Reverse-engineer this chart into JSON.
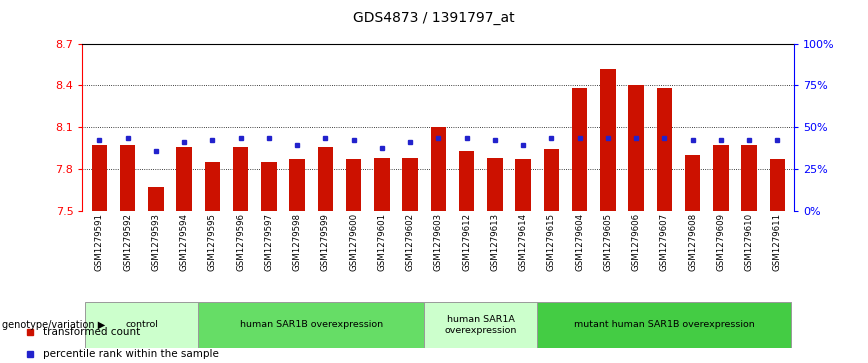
{
  "title": "GDS4873 / 1391797_at",
  "samples": [
    "GSM1279591",
    "GSM1279592",
    "GSM1279593",
    "GSM1279594",
    "GSM1279595",
    "GSM1279596",
    "GSM1279597",
    "GSM1279598",
    "GSM1279599",
    "GSM1279600",
    "GSM1279601",
    "GSM1279602",
    "GSM1279603",
    "GSM1279612",
    "GSM1279613",
    "GSM1279614",
    "GSM1279615",
    "GSM1279604",
    "GSM1279605",
    "GSM1279606",
    "GSM1279607",
    "GSM1279608",
    "GSM1279609",
    "GSM1279610",
    "GSM1279611"
  ],
  "bar_values": [
    7.97,
    7.97,
    7.67,
    7.96,
    7.85,
    7.96,
    7.85,
    7.87,
    7.96,
    7.87,
    7.88,
    7.88,
    8.1,
    7.93,
    7.88,
    7.87,
    7.94,
    8.38,
    8.52,
    8.4,
    8.38,
    7.9,
    7.97,
    7.97,
    7.87
  ],
  "dot_values": [
    8.01,
    8.02,
    7.93,
    7.99,
    8.01,
    8.02,
    8.02,
    7.97,
    8.02,
    8.01,
    7.95,
    7.99,
    8.02,
    8.02,
    8.01,
    7.97,
    8.02,
    8.02,
    8.02,
    8.02,
    8.02,
    8.01,
    8.01,
    8.01,
    8.01
  ],
  "ymin": 7.5,
  "ymax": 8.7,
  "bar_color": "#cc1100",
  "dot_color": "#2222cc",
  "groups": [
    {
      "label": "control",
      "start": 0,
      "end": 4,
      "color": "#ccffcc"
    },
    {
      "label": "human SAR1B overexpression",
      "start": 4,
      "end": 12,
      "color": "#66dd66"
    },
    {
      "label": "human SAR1A\noverexpression",
      "start": 12,
      "end": 16,
      "color": "#ccffcc"
    },
    {
      "label": "mutant human SAR1B overexpression",
      "start": 16,
      "end": 25,
      "color": "#44cc44"
    }
  ],
  "left_yticks": [
    7.5,
    7.8,
    8.1,
    8.4,
    8.7
  ],
  "right_yticks_pct": [
    0,
    25,
    50,
    75,
    100
  ],
  "right_ylabels": [
    "0%",
    "25%",
    "50%",
    "75%",
    "100%"
  ],
  "bar_width": 0.55,
  "legend_red": "transformed count",
  "legend_blue": "percentile rank within the sample",
  "genotype_label": "genotype/variation"
}
